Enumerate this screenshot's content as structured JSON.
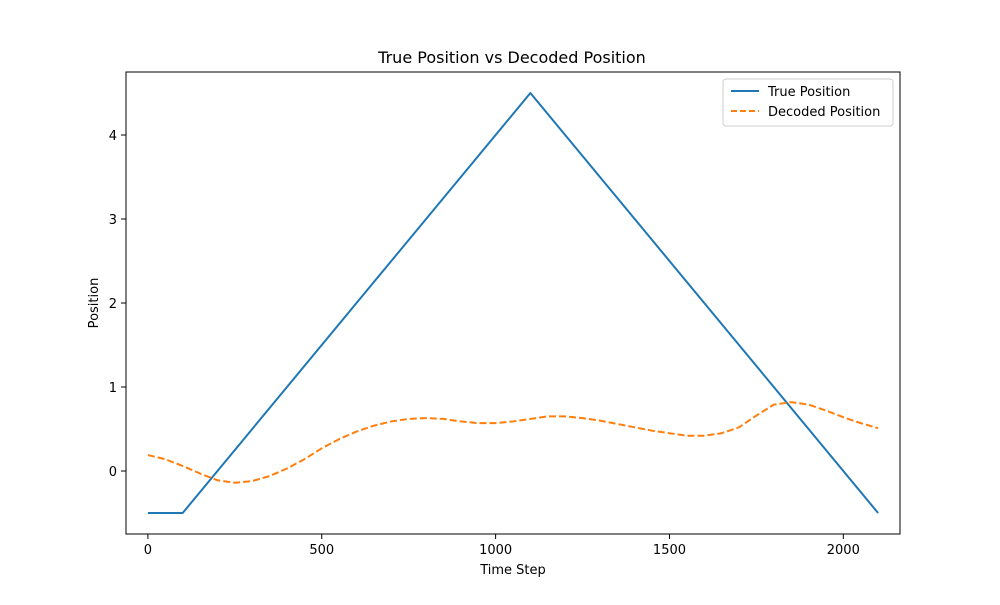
{
  "chart_data": {
    "type": "line",
    "title": "True Position vs Decoded Position",
    "xlabel": "Time Step",
    "ylabel": "Position",
    "xlim": [
      -63,
      2163
    ],
    "ylim": [
      -0.75,
      4.75
    ],
    "xticks": [
      0,
      500,
      1000,
      1500,
      2000
    ],
    "yticks": [
      0,
      1,
      2,
      3,
      4
    ],
    "grid": false,
    "legend_position": "top-right",
    "series": [
      {
        "name": "True Position",
        "color": "#1f77b4",
        "style": "solid",
        "x": [
          0,
          100,
          1100,
          2100
        ],
        "y": [
          -0.5,
          -0.5,
          4.5,
          -0.5
        ]
      },
      {
        "name": "Decoded Position",
        "color": "#ff7f0e",
        "style": "dashed",
        "x": [
          0,
          50,
          100,
          150,
          200,
          250,
          300,
          350,
          400,
          450,
          500,
          550,
          600,
          650,
          700,
          750,
          800,
          850,
          900,
          950,
          1000,
          1050,
          1100,
          1150,
          1200,
          1250,
          1300,
          1350,
          1400,
          1450,
          1500,
          1550,
          1600,
          1650,
          1700,
          1750,
          1800,
          1850,
          1900,
          1950,
          2000,
          2050,
          2100
        ],
        "y": [
          0.19,
          0.14,
          0.06,
          -0.03,
          -0.11,
          -0.14,
          -0.12,
          -0.06,
          0.03,
          0.14,
          0.27,
          0.38,
          0.47,
          0.54,
          0.59,
          0.62,
          0.63,
          0.62,
          0.59,
          0.57,
          0.57,
          0.59,
          0.62,
          0.65,
          0.65,
          0.63,
          0.6,
          0.56,
          0.52,
          0.48,
          0.45,
          0.42,
          0.42,
          0.45,
          0.52,
          0.66,
          0.79,
          0.82,
          0.79,
          0.72,
          0.64,
          0.57,
          0.51
        ]
      }
    ]
  }
}
